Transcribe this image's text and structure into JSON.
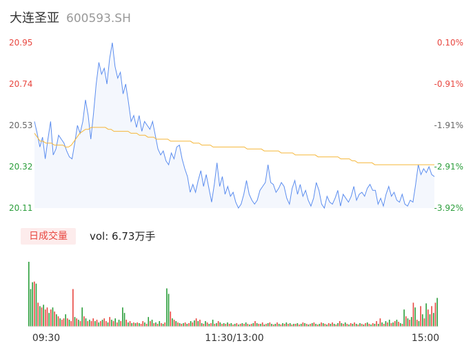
{
  "header": {
    "name": "大连圣亚",
    "code": "600593.SH"
  },
  "volume_panel": {
    "tab_label": "日成交量",
    "vol_text": "vol: 6.73万手"
  },
  "colors": {
    "price_line": "#5b8def",
    "avg_line": "#f5b638",
    "up": "#e8463f",
    "down": "#2a9d3a",
    "text": "#333333"
  },
  "chart_data": [
    {
      "type": "line",
      "series": [
        {
          "values": [
            20.55,
            20.49,
            20.42,
            20.47,
            20.36,
            20.46,
            20.55,
            20.38,
            20.41,
            20.48,
            20.46,
            20.44,
            20.4,
            20.37,
            20.36,
            20.44,
            20.53,
            20.49,
            20.55,
            20.66,
            20.58,
            20.46,
            20.59,
            20.74,
            20.85,
            20.79,
            20.82,
            20.74,
            20.87,
            20.95,
            20.83,
            20.77,
            20.8,
            20.69,
            20.74,
            20.65,
            20.55,
            20.58,
            20.52,
            20.58,
            20.5,
            20.55,
            20.53,
            20.51,
            20.55,
            20.48,
            20.41,
            20.38,
            20.4,
            20.35,
            20.33,
            20.39,
            20.36,
            20.42,
            20.43,
            20.36,
            20.31,
            20.27,
            20.19,
            20.23,
            20.19,
            20.25,
            20.3,
            20.22,
            20.28,
            20.21,
            20.14,
            20.23,
            20.34,
            20.22,
            20.27,
            20.18,
            20.22,
            20.17,
            20.19,
            20.14,
            20.11,
            20.13,
            20.18,
            20.25,
            20.18,
            20.15,
            20.13,
            20.15,
            20.2,
            20.22,
            20.24,
            20.33,
            20.24,
            20.23,
            20.19,
            20.21,
            20.24,
            20.22,
            20.16,
            20.13,
            20.21,
            20.25,
            20.18,
            20.23,
            20.17,
            20.2,
            20.15,
            20.12,
            20.16,
            20.24,
            20.2,
            20.13,
            20.11,
            20.17,
            20.14,
            20.13,
            20.16,
            20.2,
            20.12,
            20.18,
            20.16,
            20.14,
            20.17,
            20.22,
            20.15,
            20.18,
            20.19,
            20.17,
            20.21,
            20.23,
            20.2,
            20.2,
            20.13,
            20.16,
            20.12,
            20.18,
            20.22,
            20.17,
            20.19,
            20.15,
            20.14,
            20.18,
            20.13,
            20.12,
            20.15,
            20.14,
            20.23,
            20.33,
            20.28,
            20.31,
            20.29,
            20.32,
            20.28,
            20.27
          ],
          "label_hint": "price"
        },
        {
          "values": [
            20.49,
            20.47,
            20.45,
            20.45,
            20.44,
            20.44,
            20.44,
            20.43,
            20.43,
            20.43,
            20.43,
            20.42,
            20.42,
            20.43,
            20.45,
            20.47,
            20.49,
            20.5,
            20.51,
            20.51,
            20.52,
            20.52,
            20.52,
            20.52,
            20.52,
            20.52,
            20.51,
            20.51,
            20.5,
            20.5,
            20.5,
            20.5,
            20.5,
            20.5,
            20.49,
            20.49,
            20.49,
            20.48,
            20.48,
            20.48,
            20.47,
            20.47,
            20.47,
            20.46,
            20.46,
            20.46,
            20.46,
            20.46,
            20.45,
            20.45,
            20.45,
            20.45,
            20.45,
            20.45,
            20.45,
            20.45,
            20.44,
            20.44,
            20.44,
            20.43,
            20.43,
            20.43,
            20.43,
            20.42,
            20.42,
            20.42,
            20.42,
            20.42,
            20.42,
            20.42,
            20.42,
            20.42,
            20.42,
            20.42,
            20.42,
            20.41,
            20.41,
            20.41,
            20.41,
            20.41,
            20.41,
            20.4,
            20.4,
            20.4,
            20.4,
            20.4,
            20.4,
            20.39,
            20.39,
            20.39,
            20.39,
            20.39,
            20.38,
            20.38,
            20.38,
            20.38,
            20.38,
            20.38,
            20.38,
            20.38,
            20.37,
            20.37,
            20.37,
            20.37,
            20.37,
            20.37,
            20.37,
            20.37,
            20.36,
            20.36,
            20.36,
            20.36,
            20.35,
            20.35,
            20.34,
            20.34,
            20.34,
            20.34,
            20.34,
            20.34,
            20.33,
            20.33,
            20.33,
            20.33,
            20.33,
            20.33,
            20.33,
            20.33,
            20.33,
            20.33,
            20.33,
            20.33,
            20.33,
            20.33,
            20.33,
            20.33,
            20.33,
            20.33,
            20.33,
            20.33,
            20.33,
            20.33
          ],
          "label_hint": "avg"
        }
      ],
      "ylim": [
        20.11,
        20.95
      ],
      "y_ticks_left": [
        "20.95",
        "20.74",
        "20.53",
        "20.32",
        "20.11"
      ],
      "y_ticks_right": [
        "0.10%",
        "-0.91%",
        "-1.91%",
        "-2.91%",
        "-3.92%"
      ],
      "grid": false
    },
    {
      "type": "bar",
      "x_ticks": [
        "09:30",
        "11:30/13:00",
        "15:00"
      ],
      "values": [
        95,
        55,
        65,
        66,
        63,
        35,
        30,
        28,
        32,
        25,
        28,
        20,
        25,
        28,
        22,
        18,
        15,
        12,
        10,
        12,
        18,
        12,
        10,
        8,
        55,
        14,
        12,
        10,
        8,
        28,
        15,
        12,
        8,
        10,
        8,
        12,
        8,
        10,
        6,
        8,
        10,
        12,
        8,
        6,
        14,
        10,
        8,
        12,
        6,
        10,
        8,
        28,
        20,
        10,
        6,
        8,
        5,
        6,
        5,
        6,
        5,
        4,
        8,
        6,
        4,
        14,
        8,
        10,
        5,
        6,
        4,
        8,
        5,
        4,
        6,
        56,
        48,
        22,
        12,
        10,
        8,
        6,
        5,
        4,
        5,
        6,
        4,
        5,
        8,
        6,
        9,
        12,
        8,
        10,
        5,
        4,
        8,
        6,
        4,
        5,
        10,
        4,
        5,
        8,
        6,
        4,
        5,
        4,
        6,
        4,
        5,
        3,
        4,
        5,
        3,
        4,
        5,
        4,
        6,
        4,
        3,
        4,
        5,
        8,
        5,
        4,
        4,
        6,
        3,
        4,
        5,
        6,
        4,
        3,
        4,
        6,
        4,
        3,
        5,
        4,
        6,
        4,
        5,
        3,
        4,
        4,
        5,
        3,
        4,
        6,
        5,
        4,
        3,
        4,
        5,
        6,
        4,
        3,
        4,
        6,
        5,
        4,
        3,
        5,
        4,
        6,
        4,
        3,
        5,
        8,
        5,
        4,
        6,
        4,
        3,
        5,
        4,
        6,
        4,
        3,
        5,
        4,
        3,
        5,
        6,
        4,
        3,
        5,
        4,
        8,
        4,
        12,
        6,
        4,
        8,
        6,
        10,
        5,
        6,
        8,
        10,
        7,
        5,
        4,
        25,
        15,
        12,
        10,
        14,
        35,
        28,
        10,
        8,
        30,
        18,
        12,
        34,
        25,
        18,
        30,
        20,
        35,
        42
      ],
      "colors": [
        "d",
        "d",
        "d",
        "u",
        "d",
        "u",
        "d",
        "u",
        "d",
        "u",
        "u",
        "d",
        "u",
        "d",
        "u",
        "d",
        "u",
        "d",
        "u",
        "u",
        "d",
        "u",
        "d",
        "u",
        "u",
        "d",
        "u",
        "d",
        "u",
        "d",
        "u",
        "d",
        "u",
        "d",
        "u",
        "u",
        "d",
        "u",
        "d",
        "u",
        "d",
        "u",
        "u",
        "d",
        "u",
        "d",
        "u",
        "d",
        "u",
        "d",
        "u",
        "d",
        "d",
        "u",
        "d",
        "u",
        "d",
        "u",
        "d",
        "u",
        "d",
        "u",
        "u",
        "d",
        "u",
        "d",
        "u",
        "d",
        "u",
        "d",
        "u",
        "d",
        "u",
        "d",
        "u",
        "d",
        "d",
        "u",
        "d",
        "u",
        "d",
        "u",
        "d",
        "u",
        "d",
        "u",
        "d",
        "u",
        "d",
        "u",
        "d",
        "u",
        "d",
        "u",
        "d",
        "u",
        "d",
        "u",
        "d",
        "u",
        "d",
        "u",
        "d",
        "u",
        "d",
        "u",
        "d",
        "u",
        "d",
        "u",
        "d",
        "u",
        "d",
        "u",
        "d",
        "u",
        "d",
        "u",
        "d",
        "u",
        "d",
        "u",
        "d",
        "u",
        "d",
        "u",
        "d",
        "u",
        "d",
        "u",
        "d",
        "u",
        "d",
        "u",
        "d",
        "u",
        "d",
        "u",
        "d",
        "u",
        "d",
        "u",
        "d",
        "u",
        "d",
        "u",
        "d",
        "u",
        "d",
        "u",
        "d",
        "u",
        "d",
        "u",
        "d",
        "u",
        "d",
        "u",
        "d",
        "u",
        "d",
        "u",
        "d",
        "u",
        "d",
        "u",
        "d",
        "u",
        "d",
        "u",
        "d",
        "u",
        "d",
        "u",
        "d",
        "u",
        "d",
        "u",
        "d",
        "u",
        "d",
        "u",
        "d",
        "u",
        "d",
        "u",
        "d",
        "u",
        "d",
        "u",
        "d",
        "u",
        "d",
        "u",
        "d",
        "u",
        "d",
        "u",
        "d",
        "u",
        "d",
        "u",
        "d",
        "u",
        "d",
        "u",
        "d",
        "u",
        "d",
        "u",
        "d",
        "u",
        "d",
        "u",
        "d",
        "u",
        "d",
        "u",
        "d",
        "u",
        "d",
        "u",
        "d",
        "u",
        "d",
        "u",
        "d",
        "u",
        "d",
        "u",
        "d",
        "u",
        "d",
        "u",
        "d",
        "u",
        "d"
      ]
    }
  ]
}
